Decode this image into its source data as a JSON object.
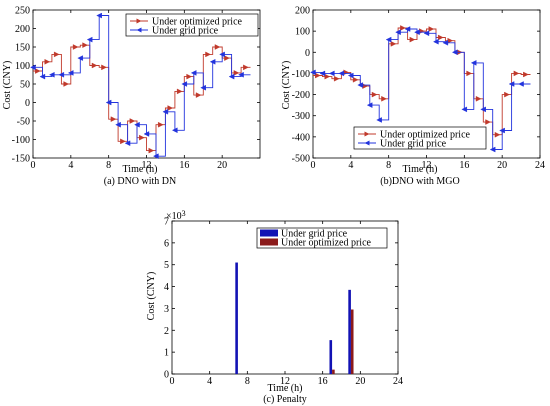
{
  "colors": {
    "optimized": "#c0392b",
    "grid": "#2233dd",
    "bar_grid": "#1212b4",
    "bar_opt": "#8b1a1a"
  },
  "chart_data": [
    {
      "type": "line",
      "step": true,
      "caption": "(a) DNO with DN",
      "xlabel": "Time  (h)",
      "ylabel": "Cost (CNY)",
      "xlim": [
        0,
        24
      ],
      "ylim": [
        -150,
        250
      ],
      "xticks": [
        "0",
        "4",
        "8",
        "12",
        "16",
        "20"
      ],
      "xtick_values": [
        0,
        4,
        8,
        12,
        16,
        20
      ],
      "yticks": [
        "-150",
        "-100",
        "-50",
        "0",
        "50",
        "100",
        "150",
        "200",
        "250"
      ],
      "ytick_values": [
        -150,
        -100,
        -50,
        0,
        50,
        100,
        150,
        200,
        250
      ],
      "legend_position": "top-right",
      "series": [
        {
          "name": "Under optimized price",
          "color_key": "optimized",
          "marker": "right-triangle",
          "values": [
            85,
            110,
            130,
            50,
            150,
            155,
            100,
            95,
            -45,
            -105,
            -50,
            -95,
            -130,
            -60,
            -15,
            30,
            70,
            20,
            130,
            150,
            120,
            80,
            95
          ]
        },
        {
          "name": "Under grid price",
          "color_key": "grid",
          "marker": "left-triangle",
          "values": [
            95,
            70,
            75,
            75,
            80,
            120,
            170,
            235,
            0,
            -60,
            -110,
            -60,
            -85,
            -145,
            -25,
            -75,
            50,
            80,
            40,
            110,
            130,
            70,
            75
          ]
        }
      ]
    },
    {
      "type": "line",
      "step": true,
      "caption": "(b)DNO with MGO",
      "xlabel": "Time  (h)",
      "ylabel": "Cost (CNY)",
      "xlim": [
        0,
        24
      ],
      "ylim": [
        -500,
        200
      ],
      "xticks": [
        "0",
        "4",
        "8",
        "12",
        "16",
        "20",
        "24"
      ],
      "xtick_values": [
        0,
        4,
        8,
        12,
        16,
        20,
        24
      ],
      "yticks": [
        "-500",
        "-400",
        "-300",
        "-200",
        "-100",
        "0",
        "100",
        "200"
      ],
      "ytick_values": [
        -500,
        -400,
        -300,
        -200,
        -100,
        0,
        100,
        200
      ],
      "legend_position": "bottom-right",
      "series": [
        {
          "name": "Under optimized price",
          "color_key": "optimized",
          "marker": "right-triangle",
          "values": [
            -110,
            -115,
            -125,
            -95,
            -130,
            -160,
            -200,
            -220,
            40,
            115,
            60,
            100,
            110,
            70,
            55,
            0,
            -100,
            -220,
            -330,
            -390,
            -200,
            -100,
            -105
          ]
        },
        {
          "name": "Under grid price",
          "color_key": "grid",
          "marker": "left-triangle",
          "values": [
            -95,
            -100,
            -100,
            -100,
            -110,
            -155,
            -250,
            -320,
            60,
            95,
            110,
            95,
            90,
            50,
            45,
            0,
            -270,
            -50,
            -270,
            -460,
            -370,
            -150,
            -150
          ]
        }
      ]
    },
    {
      "type": "bar",
      "caption": "(c) Penalty",
      "xlabel": "Time  (h)",
      "ylabel": "Cost (CNY)",
      "xlim": [
        0,
        24
      ],
      "ylim": [
        0,
        7
      ],
      "exponent_label": "×10",
      "exponent_power": "3",
      "xticks": [
        "0",
        "4",
        "8",
        "12",
        "16",
        "20",
        "24"
      ],
      "xtick_values": [
        0,
        4,
        8,
        12,
        16,
        20,
        24
      ],
      "yticks": [
        "0",
        "1",
        "2",
        "3",
        "4",
        "5",
        "6",
        "7"
      ],
      "ytick_values": [
        0,
        1,
        2,
        3,
        4,
        5,
        6,
        7
      ],
      "legend_position": "top-right",
      "series": [
        {
          "name": "Under grid price",
          "color_key": "bar_grid",
          "x": [
            7,
            17,
            19
          ],
          "values": [
            5.1,
            1.55,
            3.85
          ]
        },
        {
          "name": "Under optimized price",
          "color_key": "bar_opt",
          "x": [
            7,
            17,
            19
          ],
          "values": [
            0,
            0.2,
            2.95
          ]
        }
      ]
    }
  ]
}
